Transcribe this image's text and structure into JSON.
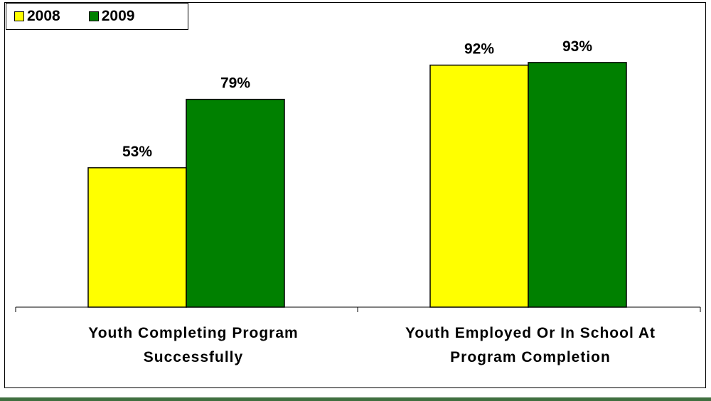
{
  "chart_data": {
    "type": "bar",
    "categories": [
      [
        "Youth Completing Program",
        "Successfully"
      ],
      [
        "Youth Employed Or In School At",
        "Program Completion"
      ]
    ],
    "series": [
      {
        "name": "2008",
        "color": "#ffff00",
        "values": [
          53,
          92
        ],
        "labels": [
          "53%",
          "92%"
        ]
      },
      {
        "name": "2009",
        "color": "#008000",
        "values": [
          79,
          93
        ],
        "labels": [
          "79%",
          "93%"
        ]
      }
    ],
    "ylim": [
      0,
      100
    ],
    "legend_position": "top-left",
    "grid": false
  }
}
